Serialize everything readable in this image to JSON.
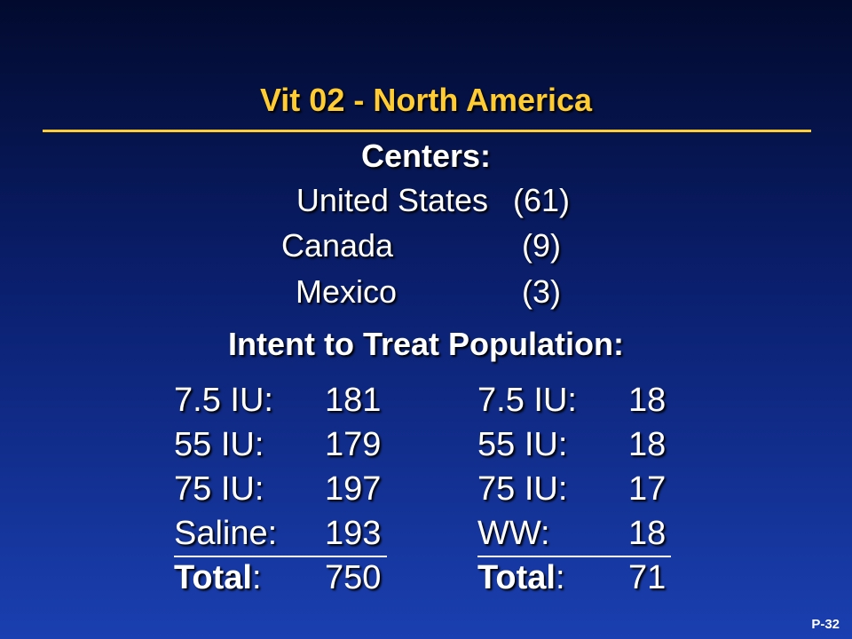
{
  "title": "Vit 02 - North America",
  "centers": {
    "heading": "Centers:",
    "rows": [
      {
        "country": "United States",
        "count": "(61)"
      },
      {
        "country": "Canada",
        "count": "(9)"
      },
      {
        "country": "Mexico",
        "count": "(3)"
      }
    ]
  },
  "itt": {
    "heading": "Intent to Treat Population:",
    "left": [
      {
        "label": "7.5 IU:",
        "value": "181"
      },
      {
        "label": "55 IU:",
        "value": "179"
      },
      {
        "label": "75 IU:",
        "value": "197"
      },
      {
        "label": "Saline:",
        "value": "193"
      },
      {
        "label": "Total",
        "suffix": ":",
        "value": "750"
      }
    ],
    "right": [
      {
        "label": "7.5 IU:",
        "value": "18"
      },
      {
        "label": "55 IU:",
        "value": "18"
      },
      {
        "label": "75 IU:",
        "value": "17"
      },
      {
        "label": "WW:",
        "value": "18"
      },
      {
        "label": "Total",
        "suffix": ":",
        "value": "71"
      }
    ]
  },
  "page_number": "P-32",
  "colors": {
    "title": "#ffcc33",
    "text": "#ffffff",
    "background_top": "#020a2e",
    "background_bottom": "#1a3fb0"
  }
}
